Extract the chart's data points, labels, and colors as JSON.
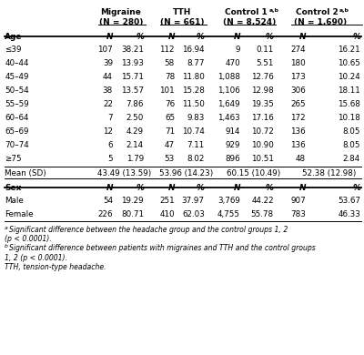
{
  "age_rows": [
    [
      "≤39",
      "107",
      "38.21",
      "112",
      "16.94",
      "9",
      "0.11",
      "274",
      "16.21"
    ],
    [
      "40–44",
      "39",
      "13.93",
      "58",
      "8.77",
      "470",
      "5.51",
      "180",
      "10.65"
    ],
    [
      "45–49",
      "44",
      "15.71",
      "78",
      "11.80",
      "1,088",
      "12.76",
      "173",
      "10.24"
    ],
    [
      "50–54",
      "38",
      "13.57",
      "101",
      "15.28",
      "1,106",
      "12.98",
      "306",
      "18.11"
    ],
    [
      "55–59",
      "22",
      "7.86",
      "76",
      "11.50",
      "1,649",
      "19.35",
      "265",
      "15.68"
    ],
    [
      "60–64",
      "7",
      "2.50",
      "65",
      "9.83",
      "1,463",
      "17.16",
      "172",
      "10.18"
    ],
    [
      "65–69",
      "12",
      "4.29",
      "71",
      "10.74",
      "914",
      "10.72",
      "136",
      "8.05"
    ],
    [
      "70–74",
      "6",
      "2.14",
      "47",
      "7.11",
      "929",
      "10.90",
      "136",
      "8.05"
    ],
    [
      "≥75",
      "5",
      "1.79",
      "53",
      "8.02",
      "896",
      "10.51",
      "48",
      "2.84"
    ]
  ],
  "sex_rows": [
    [
      "Male",
      "54",
      "19.29",
      "251",
      "37.97",
      "3,769",
      "44.22",
      "907",
      "53.67"
    ],
    [
      "Female",
      "226",
      "80.71",
      "410",
      "62.03",
      "4,755",
      "55.78",
      "783",
      "46.33"
    ]
  ],
  "footnotes": [
    [
      "a",
      "Significant difference between the headache group and the control groups 1, 2"
    ],
    [
      "",
      "(p < 0.0001)."
    ],
    [
      "b",
      "Significant difference between patients with migraines and TTH and the control groups"
    ],
    [
      "",
      "1, 2 (p < 0.0001)."
    ],
    [
      "",
      "TTH, tension-type headache."
    ]
  ],
  "bg_color": "#ffffff"
}
